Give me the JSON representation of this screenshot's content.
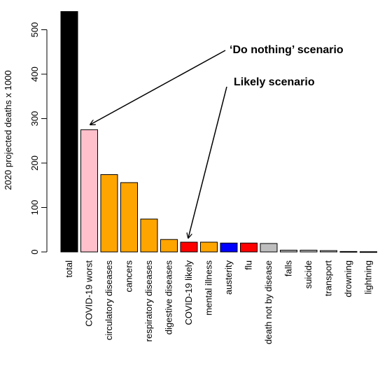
{
  "chart_data": {
    "type": "bar",
    "ylabel": "2020 projected deaths x 1000",
    "ylim": [
      0,
      540
    ],
    "yticks": [
      0,
      100,
      200,
      300,
      400,
      500
    ],
    "grid": false,
    "categories": [
      "total",
      "COVID-19 worst",
      "circulatory diseases",
      "cancers",
      "respiratory diseases",
      "digestive diseases",
      "COVID-19 likely",
      "mental illness",
      "austerity",
      "flu",
      "death not by disease",
      "falls",
      "suicide",
      "transport",
      "drowning",
      "lightning"
    ],
    "values": [
      541,
      275,
      174,
      156,
      74,
      28,
      22,
      22,
      20,
      20,
      19,
      4,
      4,
      3,
      1,
      0.5
    ],
    "colors": [
      "#000000",
      "#ffc0cb",
      "#ffa500",
      "#ffa500",
      "#ffa500",
      "#ffa500",
      "#ff0000",
      "#ffa500",
      "#0000ff",
      "#ff0000",
      "#bebebe",
      "#bebebe",
      "#bebebe",
      "#bebebe",
      "#bebebe",
      "#bebebe"
    ],
    "annotations": [
      {
        "text": "‘Do nothing’ scenario",
        "points_to": "COVID-19 worst"
      },
      {
        "text": "Likely scenario",
        "points_to": "COVID-19 likely"
      }
    ]
  }
}
